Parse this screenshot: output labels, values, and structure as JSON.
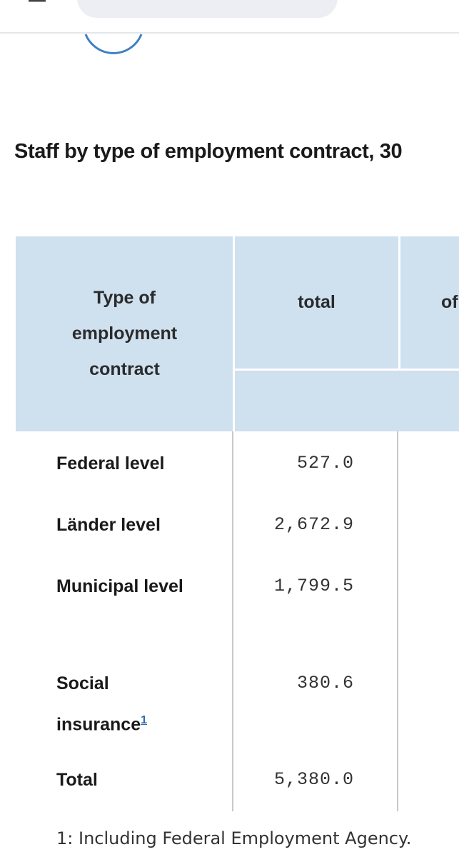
{
  "header": {
    "title": "Staff by type of employment contract, 30"
  },
  "table": {
    "columns": [
      "Type of employment contract",
      "total",
      "of"
    ],
    "rows": [
      {
        "label": "Federal level",
        "total": "527.0"
      },
      {
        "label": "Länder level",
        "total": "2,672.9"
      },
      {
        "label": "Municipal level",
        "total": "1,799.5"
      },
      {
        "label": "Social insurance",
        "note": "1",
        "total": "380.6"
      },
      {
        "label": "Total",
        "total": "5,380.0"
      }
    ],
    "footnote": "1: Including Federal Employment Agency."
  }
}
